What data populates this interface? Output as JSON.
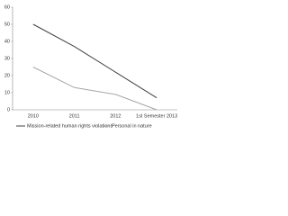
{
  "chart_data": {
    "type": "line",
    "categories": [
      "2010",
      "2011",
      "2012",
      "1st Semester 2013"
    ],
    "series": [
      {
        "name": "Mission-related human rights violations",
        "color": "#404040",
        "values": [
          50,
          37,
          22,
          7
        ]
      },
      {
        "name": "Personal in nature",
        "color": "#a6a6a6",
        "values": [
          25,
          13,
          9,
          0
        ]
      }
    ],
    "ylim": [
      0,
      60
    ],
    "yticks": [
      0,
      10,
      20,
      30,
      40,
      50,
      60
    ],
    "grid": false,
    "legend": "bottom"
  }
}
